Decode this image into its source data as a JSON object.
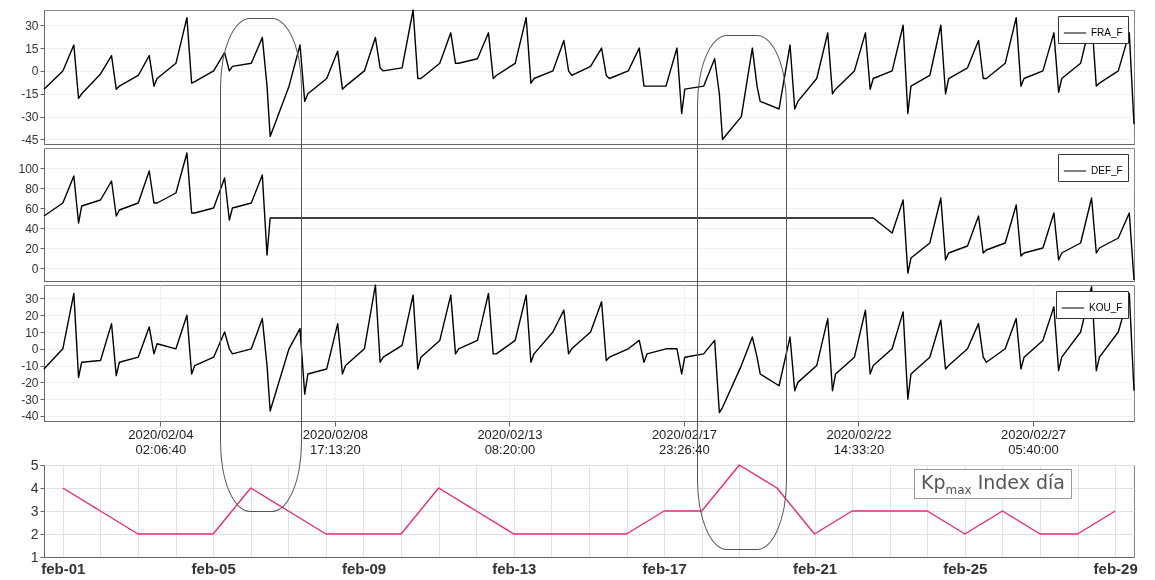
{
  "chart_data": [
    {
      "type": "line",
      "xlim": [
        "2020-02-01T00:00",
        "2020-02-29T22:00"
      ],
      "ylim": [
        -48,
        40
      ],
      "yticks": [
        30,
        15,
        0,
        -15,
        -30,
        -45
      ],
      "tick_labels": "y",
      "grid": true,
      "legend": "top right",
      "x": [
        "2020-02-01T00:00",
        "2020-02-01T12:00",
        "2020-02-01T19:00",
        "2020-02-01T22:00",
        "2020-02-02T00:00",
        "2020-02-02T12:00",
        "2020-02-02T19:00",
        "2020-02-02T22:00",
        "2020-02-03T00:00",
        "2020-02-03T12:00",
        "2020-02-03T19:00",
        "2020-02-03T22:00",
        "2020-02-04T00:00",
        "2020-02-04T12:00",
        "2020-02-04T19:00",
        "2020-02-04T22:00",
        "2020-02-05T00:00",
        "2020-02-05T12:00",
        "2020-02-05T19:00",
        "2020-02-05T22:00",
        "2020-02-06T00:00",
        "2020-02-06T12:00",
        "2020-02-06T19:00",
        "2020-02-06T22:00",
        "2020-02-07T00:00",
        "2020-02-07T12:00",
        "2020-02-07T19:00",
        "2020-02-07T22:00",
        "2020-02-08T00:00",
        "2020-02-08T12:00",
        "2020-02-08T19:00",
        "2020-02-08T22:00",
        "2020-02-09T00:00",
        "2020-02-09T12:00",
        "2020-02-09T19:00",
        "2020-02-09T22:00",
        "2020-02-10T00:00",
        "2020-02-10T12:00",
        "2020-02-10T19:00",
        "2020-02-10T22:00",
        "2020-02-11T00:00",
        "2020-02-11T12:00",
        "2020-02-11T19:00",
        "2020-02-11T22:00",
        "2020-02-12T00:00",
        "2020-02-12T12:00",
        "2020-02-12T19:00",
        "2020-02-12T22:00",
        "2020-02-13T00:00",
        "2020-02-13T12:00",
        "2020-02-13T19:00",
        "2020-02-13T22:00",
        "2020-02-14T00:00",
        "2020-02-14T12:00",
        "2020-02-14T19:00",
        "2020-02-14T22:00",
        "2020-02-15T00:00",
        "2020-02-15T12:00",
        "2020-02-15T19:00",
        "2020-02-15T22:00",
        "2020-02-16T00:00",
        "2020-02-16T12:00",
        "2020-02-16T19:00",
        "2020-02-16T22:00",
        "2020-02-17T00:00",
        "2020-02-17T12:00",
        "2020-02-17T19:00",
        "2020-02-17T22:00",
        "2020-02-18T00:00",
        "2020-02-18T12:00",
        "2020-02-18T19:00",
        "2020-02-18T22:00",
        "2020-02-19T00:00",
        "2020-02-19T12:00",
        "2020-02-19T19:00",
        "2020-02-19T22:00",
        "2020-02-20T00:00",
        "2020-02-20T12:00",
        "2020-02-20T19:00",
        "2020-02-20T22:00",
        "2020-02-21T00:00",
        "2020-02-21T12:00",
        "2020-02-21T19:00",
        "2020-02-21T22:00",
        "2020-02-22T00:00",
        "2020-02-22T12:00",
        "2020-02-22T19:00",
        "2020-02-22T22:00",
        "2020-02-23T00:00",
        "2020-02-23T12:00",
        "2020-02-23T19:00",
        "2020-02-23T22:00",
        "2020-02-24T00:00",
        "2020-02-24T12:00",
        "2020-02-24T19:00",
        "2020-02-24T22:00",
        "2020-02-25T00:00",
        "2020-02-25T12:00",
        "2020-02-25T19:00",
        "2020-02-25T22:00",
        "2020-02-26T00:00",
        "2020-02-26T12:00",
        "2020-02-26T19:00",
        "2020-02-26T22:00",
        "2020-02-27T00:00",
        "2020-02-27T12:00",
        "2020-02-27T19:00",
        "2020-02-27T22:00",
        "2020-02-28T00:00",
        "2020-02-28T12:00",
        "2020-02-28T19:00",
        "2020-02-28T22:00",
        "2020-02-29T00:00",
        "2020-02-29T12:00",
        "2020-02-29T19:00",
        "2020-02-29T22:00"
      ],
      "series": [
        {
          "name": "FRA_F",
          "color": "#000000",
          "values": [
            -12,
            0,
            17,
            -18,
            -15,
            -2,
            10,
            -12,
            -10,
            -3,
            10,
            -10,
            -5,
            5,
            35,
            -8,
            -7,
            0,
            12,
            0,
            3,
            5,
            22,
            -10,
            -43,
            -10,
            17,
            -20,
            -15,
            -5,
            13,
            -12,
            -10,
            0,
            22,
            2,
            0,
            2,
            40,
            -5,
            -5,
            5,
            25,
            5,
            5,
            8,
            25,
            -5,
            -3,
            5,
            35,
            -8,
            -5,
            0,
            20,
            0,
            -3,
            3,
            15,
            -3,
            -5,
            0,
            15,
            -10,
            -10,
            -10,
            15,
            -28,
            -12,
            -10,
            8,
            -15,
            -45,
            -30,
            15,
            -10,
            -20,
            -25,
            17,
            -25,
            -20,
            -5,
            25,
            -15,
            -12,
            0,
            25,
            -12,
            -5,
            0,
            30,
            -28,
            -10,
            -3,
            30,
            -15,
            -5,
            2,
            20,
            -5,
            -5,
            5,
            35,
            -10,
            -5,
            0,
            25,
            -14,
            -5,
            5,
            35,
            -10,
            -8,
            0,
            25,
            -35
          ]
        }
      ]
    },
    {
      "type": "line",
      "xlim": [
        "2020-02-01T00:00",
        "2020-02-29T22:00"
      ],
      "ylim": [
        -13,
        120
      ],
      "yticks": [
        0,
        20,
        40,
        60,
        80,
        100
      ],
      "tick_labels": "y",
      "grid": true,
      "legend": "top right",
      "x": [
        "2020-02-01T00:00",
        "2020-02-01T12:00",
        "2020-02-01T19:00",
        "2020-02-01T22:00",
        "2020-02-02T00:00",
        "2020-02-02T12:00",
        "2020-02-02T19:00",
        "2020-02-02T22:00",
        "2020-02-03T00:00",
        "2020-02-03T12:00",
        "2020-02-03T19:00",
        "2020-02-03T22:00",
        "2020-02-04T00:00",
        "2020-02-04T12:00",
        "2020-02-04T19:00",
        "2020-02-04T22:00",
        "2020-02-05T00:00",
        "2020-02-05T12:00",
        "2020-02-05T19:00",
        "2020-02-05T22:00",
        "2020-02-06T00:00",
        "2020-02-06T12:00",
        "2020-02-06T19:00",
        "2020-02-06T22:00",
        "2020-02-07T00:00",
        "2020-02-07T12:00",
        "2020-02-07T19:00",
        "2020-02-07T22:00",
        "2020-02-08T00:00",
        "2020-02-08T12:00",
        "2020-02-08T19:00",
        "2020-02-08T22:00",
        "2020-02-09T00:00",
        "2020-02-09T12:00",
        "2020-02-09T19:00",
        "2020-02-09T22:00",
        "2020-02-10T00:00",
        "2020-02-10T12:00",
        "2020-02-10T19:00",
        "2020-02-10T22:00",
        "2020-02-11T00:00",
        "2020-02-11T12:00",
        "2020-02-11T19:00",
        "2020-02-11T22:00",
        "2020-02-12T00:00",
        "2020-02-12T12:00",
        "2020-02-12T19:00",
        "2020-02-12T22:00",
        "2020-02-13T00:00",
        "2020-02-13T12:00",
        "2020-02-13T19:00",
        "2020-02-13T22:00",
        "2020-02-14T00:00",
        "2020-02-14T12:00",
        "2020-02-14T19:00",
        "2020-02-14T22:00",
        "2020-02-15T00:00",
        "2020-02-15T12:00",
        "2020-02-15T19:00",
        "2020-02-15T22:00",
        "2020-02-16T00:00",
        "2020-02-16T12:00",
        "2020-02-16T19:00",
        "2020-02-16T22:00",
        "2020-02-17T00:00",
        "2020-02-17T12:00",
        "2020-02-17T19:00",
        "2020-02-17T22:00",
        "2020-02-18T00:00",
        "2020-02-18T12:00",
        "2020-02-18T19:00",
        "2020-02-18T22:00",
        "2020-02-19T00:00",
        "2020-02-19T12:00",
        "2020-02-19T19:00",
        "2020-02-19T22:00",
        "2020-02-20T00:00",
        "2020-02-20T12:00",
        "2020-02-20T19:00",
        "2020-02-20T22:00",
        "2020-02-21T00:00",
        "2020-02-21T12:00",
        "2020-02-21T19:00",
        "2020-02-21T22:00",
        "2020-02-22T00:00",
        "2020-02-22T12:00",
        "2020-02-22T19:00",
        "2020-02-22T22:00",
        "2020-02-23T00:00",
        "2020-02-23T12:00",
        "2020-02-23T19:00",
        "2020-02-23T22:00",
        "2020-02-24T00:00",
        "2020-02-24T12:00",
        "2020-02-24T19:00",
        "2020-02-24T22:00",
        "2020-02-25T00:00",
        "2020-02-25T12:00",
        "2020-02-25T19:00",
        "2020-02-25T22:00",
        "2020-02-26T00:00",
        "2020-02-26T12:00",
        "2020-02-26T19:00",
        "2020-02-26T22:00",
        "2020-02-27T00:00",
        "2020-02-27T12:00",
        "2020-02-27T19:00",
        "2020-02-27T22:00",
        "2020-02-28T00:00",
        "2020-02-28T12:00",
        "2020-02-28T19:00",
        "2020-02-28T22:00",
        "2020-02-29T00:00",
        "2020-02-29T12:00",
        "2020-02-29T19:00",
        "2020-02-29T22:00"
      ],
      "series": [
        {
          "name": "DEF_F",
          "color": "#000000",
          "values": [
            52,
            65,
            92,
            45,
            62,
            68,
            87,
            52,
            58,
            65,
            97,
            65,
            65,
            75,
            115,
            55,
            55,
            60,
            90,
            48,
            60,
            65,
            93,
            13,
            50,
            50,
            50,
            50,
            50,
            50,
            50,
            50,
            50,
            50,
            50,
            50,
            50,
            50,
            50,
            50,
            50,
            50,
            50,
            50,
            50,
            50,
            50,
            50,
            50,
            50,
            50,
            50,
            50,
            50,
            50,
            50,
            50,
            50,
            50,
            50,
            50,
            50,
            50,
            50,
            50,
            50,
            50,
            50,
            50,
            50,
            50,
            50,
            50,
            50,
            50,
            50,
            50,
            50,
            50,
            50,
            50,
            50,
            50,
            50,
            50,
            50,
            50,
            50,
            50,
            35,
            68,
            -5,
            10,
            25,
            70,
            8,
            15,
            22,
            52,
            15,
            18,
            25,
            63,
            12,
            15,
            20,
            55,
            8,
            15,
            25,
            70,
            15,
            20,
            30,
            55,
            -12
          ]
        }
      ]
    },
    {
      "type": "line",
      "xlim": [
        "2020-02-01T00:00",
        "2020-02-29T22:00"
      ],
      "ylim": [
        -43,
        38
      ],
      "yticks": [
        30,
        20,
        10,
        0,
        -10,
        -20,
        -30,
        -40
      ],
      "xticks": [
        {
          "value": "2020-02-04T02:06",
          "label": "2020/02/04 02:06:40"
        },
        {
          "value": "2020-02-08T17:13",
          "label": "2020/02/08 17:13:20"
        },
        {
          "value": "2020-02-13T08:20",
          "label": "2020/02/13 08:20:00"
        },
        {
          "value": "2020-02-17T23:26",
          "label": "2020/02/17 23:26:40"
        },
        {
          "value": "2020-02-22T14:33",
          "label": "2020/02/22 14:33:20"
        },
        {
          "value": "2020-02-27T05:40",
          "label": "2020/02/27 05:40:00"
        }
      ],
      "grid": true,
      "legend": "top right",
      "x": [
        "2020-02-01T00:00",
        "2020-02-01T12:00",
        "2020-02-01T19:00",
        "2020-02-01T22:00",
        "2020-02-02T00:00",
        "2020-02-02T12:00",
        "2020-02-02T19:00",
        "2020-02-02T22:00",
        "2020-02-03T00:00",
        "2020-02-03T12:00",
        "2020-02-03T19:00",
        "2020-02-03T22:00",
        "2020-02-04T00:00",
        "2020-02-04T12:00",
        "2020-02-04T19:00",
        "2020-02-04T22:00",
        "2020-02-05T00:00",
        "2020-02-05T12:00",
        "2020-02-05T19:00",
        "2020-02-05T22:00",
        "2020-02-06T00:00",
        "2020-02-06T12:00",
        "2020-02-06T19:00",
        "2020-02-06T22:00",
        "2020-02-07T00:00",
        "2020-02-07T12:00",
        "2020-02-07T19:00",
        "2020-02-07T22:00",
        "2020-02-08T00:00",
        "2020-02-08T12:00",
        "2020-02-08T19:00",
        "2020-02-08T22:00",
        "2020-02-09T00:00",
        "2020-02-09T12:00",
        "2020-02-09T19:00",
        "2020-02-09T22:00",
        "2020-02-10T00:00",
        "2020-02-10T12:00",
        "2020-02-10T19:00",
        "2020-02-10T22:00",
        "2020-02-11T00:00",
        "2020-02-11T12:00",
        "2020-02-11T19:00",
        "2020-02-11T22:00",
        "2020-02-12T00:00",
        "2020-02-12T12:00",
        "2020-02-12T19:00",
        "2020-02-12T22:00",
        "2020-02-13T00:00",
        "2020-02-13T12:00",
        "2020-02-13T19:00",
        "2020-02-13T22:00",
        "2020-02-14T00:00",
        "2020-02-14T12:00",
        "2020-02-14T19:00",
        "2020-02-14T22:00",
        "2020-02-15T00:00",
        "2020-02-15T12:00",
        "2020-02-15T19:00",
        "2020-02-15T22:00",
        "2020-02-16T00:00",
        "2020-02-16T12:00",
        "2020-02-16T19:00",
        "2020-02-16T22:00",
        "2020-02-17T00:00",
        "2020-02-17T12:00",
        "2020-02-17T19:00",
        "2020-02-17T22:00",
        "2020-02-18T00:00",
        "2020-02-18T12:00",
        "2020-02-18T19:00",
        "2020-02-18T22:00",
        "2020-02-19T00:00",
        "2020-02-19T12:00",
        "2020-02-19T19:00",
        "2020-02-19T22:00",
        "2020-02-20T00:00",
        "2020-02-20T12:00",
        "2020-02-20T19:00",
        "2020-02-20T22:00",
        "2020-02-21T00:00",
        "2020-02-21T12:00",
        "2020-02-21T19:00",
        "2020-02-21T22:00",
        "2020-02-22T00:00",
        "2020-02-22T12:00",
        "2020-02-22T19:00",
        "2020-02-22T22:00",
        "2020-02-23T00:00",
        "2020-02-23T12:00",
        "2020-02-23T19:00",
        "2020-02-23T22:00",
        "2020-02-24T00:00",
        "2020-02-24T12:00",
        "2020-02-24T19:00",
        "2020-02-24T22:00",
        "2020-02-25T00:00",
        "2020-02-25T12:00",
        "2020-02-25T19:00",
        "2020-02-25T22:00",
        "2020-02-26T00:00",
        "2020-02-26T12:00",
        "2020-02-26T19:00",
        "2020-02-26T22:00",
        "2020-02-27T00:00",
        "2020-02-27T12:00",
        "2020-02-27T19:00",
        "2020-02-27T22:00",
        "2020-02-28T00:00",
        "2020-02-28T12:00",
        "2020-02-28T19:00",
        "2020-02-28T22:00",
        "2020-02-29T00:00",
        "2020-02-29T12:00",
        "2020-02-29T19:00",
        "2020-02-29T22:00"
      ],
      "series": [
        {
          "name": "KOU_F",
          "color": "#000000",
          "values": [
            -12,
            0,
            33,
            -17,
            -8,
            -7,
            15,
            -16,
            -8,
            -5,
            13,
            -3,
            3,
            0,
            20,
            -15,
            -10,
            -5,
            10,
            0,
            -3,
            0,
            18,
            -10,
            -37,
            0,
            12,
            -27,
            -15,
            -12,
            15,
            -15,
            -10,
            0,
            38,
            -8,
            -5,
            2,
            32,
            -12,
            -5,
            5,
            32,
            -3,
            0,
            5,
            33,
            -3,
            -3,
            5,
            32,
            -8,
            -3,
            10,
            23,
            -3,
            0,
            10,
            28,
            -7,
            -5,
            0,
            5,
            -8,
            -3,
            0,
            0,
            -15,
            -5,
            -3,
            5,
            -38,
            -35,
            -10,
            7,
            -5,
            -15,
            -22,
            7,
            -25,
            -20,
            -10,
            18,
            -25,
            -15,
            -5,
            23,
            -15,
            -10,
            0,
            22,
            -30,
            -15,
            -5,
            17,
            -12,
            -10,
            0,
            15,
            -5,
            -8,
            0,
            18,
            -12,
            -5,
            5,
            25,
            -13,
            -5,
            10,
            37,
            -13,
            -5,
            10,
            33,
            -25
          ]
        }
      ]
    },
    {
      "type": "line",
      "categories": [
        "feb-01",
        null,
        null,
        null,
        "feb-05",
        null,
        null,
        null,
        "feb-09",
        null,
        null,
        null,
        "feb-13",
        null,
        null,
        null,
        "feb-17",
        null,
        null,
        null,
        "feb-21",
        null,
        null,
        null,
        "feb-25",
        null,
        null,
        null,
        "feb-29"
      ],
      "series": [
        {
          "color": "#f0287a",
          "values": [
            4,
            3,
            2,
            2,
            2,
            4,
            3,
            2,
            2,
            2,
            4,
            3,
            2,
            2,
            2,
            2,
            3,
            3,
            5,
            4,
            2,
            3,
            3,
            3,
            2,
            3,
            2,
            2,
            3
          ]
        }
      ],
      "ylim": [
        1,
        5
      ],
      "yticks": [
        1,
        2,
        3,
        4,
        5
      ],
      "grid": true,
      "annotations": [
        "Kp$_{max}$ Index día"
      ]
    }
  ]
}
